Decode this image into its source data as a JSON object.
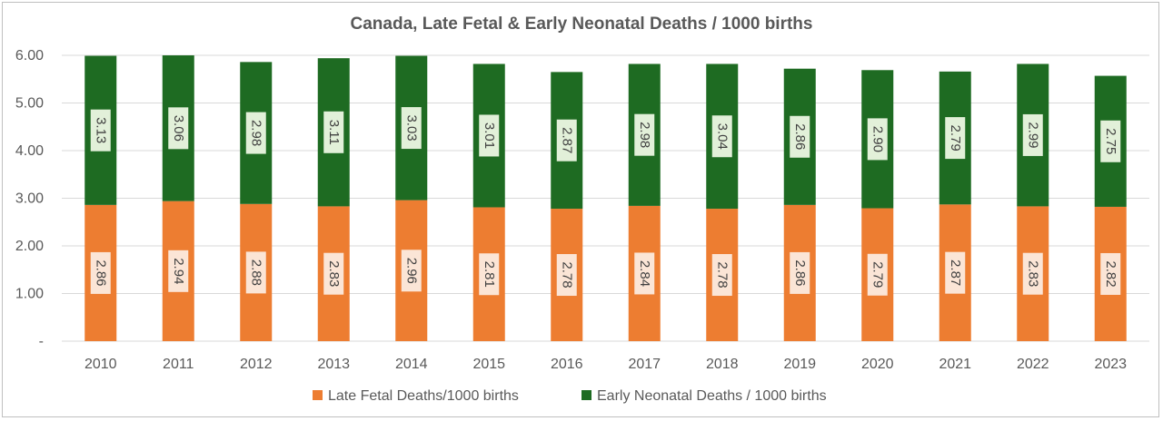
{
  "chart_data": {
    "type": "bar",
    "stacked": true,
    "title": "Canada, Late Fetal & Early Neonatal Deaths / 1000 births",
    "categories": [
      "2010",
      "2011",
      "2012",
      "2013",
      "2014",
      "2015",
      "2016",
      "2017",
      "2018",
      "2019",
      "2020",
      "2021",
      "2022",
      "2023"
    ],
    "series": [
      {
        "name": "Late Fetal Deaths/1000 births",
        "color": "#ed7d31",
        "label_bg": "#fbe5d6",
        "values": [
          2.86,
          2.94,
          2.88,
          2.83,
          2.96,
          2.81,
          2.78,
          2.84,
          2.78,
          2.86,
          2.79,
          2.87,
          2.83,
          2.82
        ]
      },
      {
        "name": "Early Neonatal Deaths / 1000 births",
        "color": "#1e6b22",
        "label_bg": "#e2f0d9",
        "values": [
          3.13,
          3.06,
          2.98,
          3.11,
          3.03,
          3.01,
          2.87,
          2.98,
          3.04,
          2.86,
          2.9,
          2.79,
          2.99,
          2.75
        ]
      }
    ],
    "y_ticks": [
      "-",
      "1.00",
      "2.00",
      "3.00",
      "4.00",
      "5.00",
      "6.00"
    ],
    "ylim": [
      0,
      6
    ],
    "grid": true,
    "legend_position": "bottom"
  }
}
